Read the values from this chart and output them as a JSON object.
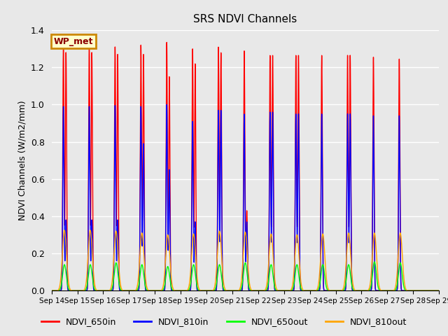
{
  "title": "SRS NDVI Channels",
  "ylabel": "NDVI Channels (W/m2/mm)",
  "xlabel": "",
  "ylim": [
    0.0,
    1.4
  ],
  "background_color": "#e8e8e8",
  "plot_bg_color": "#e8e8e8",
  "grid_color": "white",
  "annotation_text": "WP_met",
  "annotation_bg": "#ffffcc",
  "annotation_border": "#cc8800",
  "lines": {
    "NDVI_650in": {
      "color": "red",
      "lw": 1.0
    },
    "NDVI_810in": {
      "color": "blue",
      "lw": 1.0
    },
    "NDVI_650out": {
      "color": "lime",
      "lw": 1.0
    },
    "NDVI_810out": {
      "color": "orange",
      "lw": 1.0
    }
  },
  "legend": {
    "labels": [
      "NDVI_650in",
      "NDVI_810in",
      "NDVI_650out",
      "NDVI_810out"
    ],
    "colors": [
      "red",
      "blue",
      "lime",
      "orange"
    ],
    "ncol": 4,
    "fontsize": 9
  },
  "xtick_labels": [
    "Sep 14",
    "Sep 15",
    "Sep 16",
    "Sep 17",
    "Sep 18",
    "Sep 19",
    "Sep 20",
    "Sep 21",
    "Sep 22",
    "Sep 23",
    "Sep 24",
    "Sep 25",
    "Sep 26",
    "Sep 27",
    "Sep 28",
    "Sep 29"
  ],
  "ytick_labels": [
    "0.0",
    "0.2",
    "0.4",
    "0.6",
    "0.8",
    "1.0",
    "1.2",
    "1.4"
  ],
  "ytick_positions": [
    0.0,
    0.2,
    0.4,
    0.6,
    0.8,
    1.0,
    1.2,
    1.4
  ],
  "spike_peaks_650in": [
    1.32,
    1.32,
    1.31,
    1.32,
    1.335,
    1.3,
    1.31,
    1.29,
    1.265,
    1.265,
    1.265,
    1.265,
    1.255,
    1.245
  ],
  "spike_peaks2_650in": [
    1.28,
    1.28,
    1.27,
    1.27,
    1.15,
    1.22,
    1.28,
    0.43,
    1.265,
    1.265,
    0.0,
    1.265,
    0.0,
    0.0
  ],
  "spike_peaks_810in": [
    0.99,
    0.99,
    0.995,
    0.99,
    1.0,
    0.91,
    0.97,
    0.95,
    0.96,
    0.95,
    0.95,
    0.95,
    0.94,
    0.94
  ],
  "spike_peaks2_810in": [
    0.38,
    0.38,
    0.38,
    0.79,
    0.65,
    0.37,
    0.97,
    0.37,
    0.96,
    0.95,
    0.0,
    0.95,
    0.0,
    0.0
  ],
  "spike_peaks_650out": [
    0.14,
    0.14,
    0.15,
    0.14,
    0.13,
    0.14,
    0.14,
    0.15,
    0.14,
    0.14,
    0.14,
    0.14,
    0.155,
    0.15
  ],
  "spike_peaks_810out": [
    0.325,
    0.325,
    0.32,
    0.31,
    0.3,
    0.305,
    0.32,
    0.315,
    0.305,
    0.3,
    0.305,
    0.31,
    0.31,
    0.31
  ],
  "n_days": 15
}
